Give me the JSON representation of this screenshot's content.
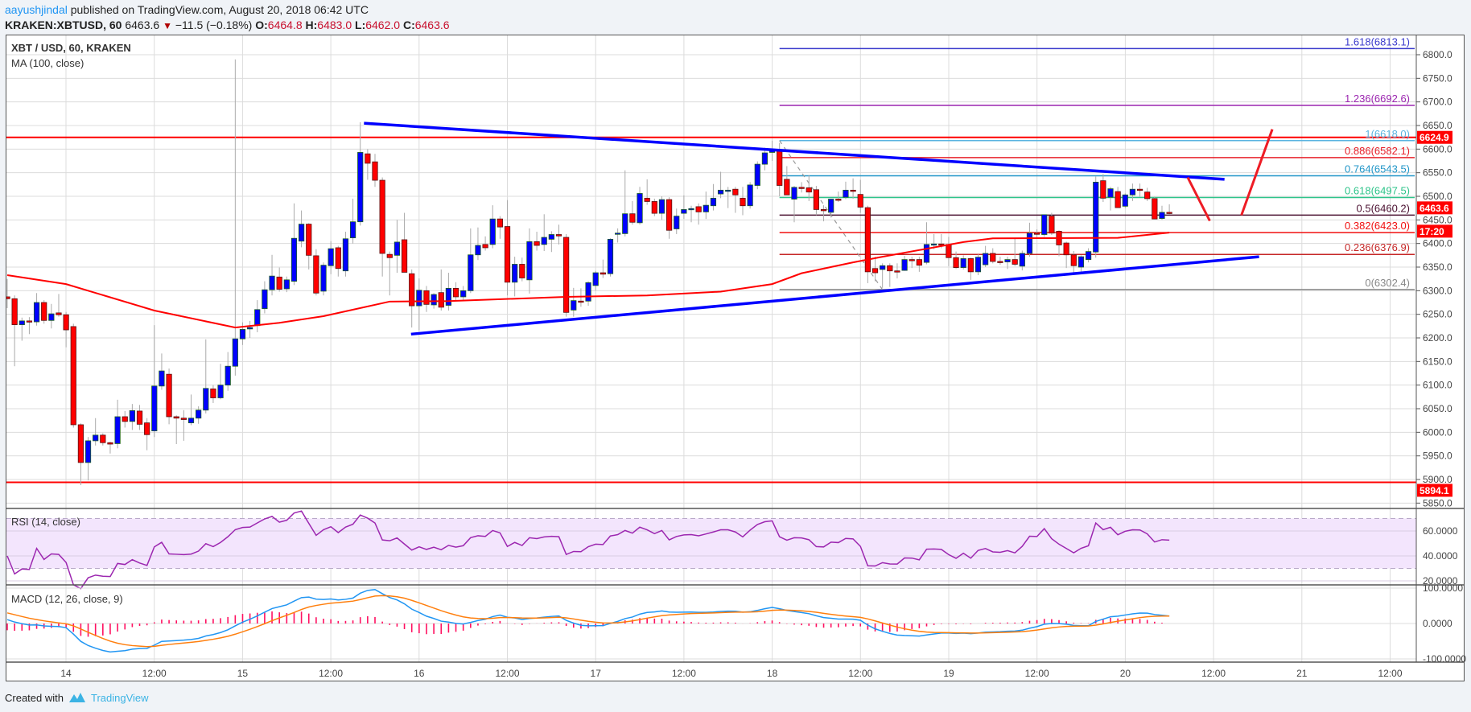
{
  "header": {
    "user": "aayushjindal",
    "published": " published on TradingView.com, August 20, 2018 06:42 UTC",
    "symbol": "KRAKEN:XBTUSD, 60",
    "last": "6463.6",
    "change": "−11.5 (−0.18%)",
    "o_label": "O:",
    "o": "6464.8",
    "h_label": "H:",
    "h": "6483.0",
    "l_label": "L:",
    "l": "6462.0",
    "c_label": "C:",
    "c": "6463.6"
  },
  "legend": {
    "title": "XBT / USD, 60, KRAKEN",
    "ma": "MA (100, close)",
    "rsi": "RSI (14, close)",
    "macd": "MACD (12, 26, close, 9)"
  },
  "footer": {
    "created": "Created with",
    "brand": "TradingView"
  },
  "colors": {
    "up": "#0000ff",
    "down": "#ff0000",
    "ma": "#ff0000",
    "trend": "#0000ff",
    "rsi": "#9c27b0",
    "macd": "#2196f3",
    "signal": "#ff7f0e",
    "hist": "#ff1060"
  },
  "chart_data": {
    "type": "candlestick",
    "title": "XBT / USD, 60, KRAKEN",
    "interval_minutes": 60,
    "first_candle": "Aug 13 16:00",
    "ylim": [
      5850,
      6800
    ],
    "price_ticks": [
      "6800.0",
      "6750.0",
      "6700.0",
      "6650.0",
      "6600.0",
      "6550.0",
      "6500.0",
      "6450.0",
      "6400.0",
      "6350.0",
      "6300.0",
      "6250.0",
      "6200.0",
      "6150.0",
      "6100.0",
      "6050.0",
      "6000.0",
      "5950.0",
      "5900.0",
      "5850.0"
    ],
    "time_ticks": [
      "14",
      "12:00",
      "15",
      "12:00",
      "16",
      "12:00",
      "17",
      "12:00",
      "18",
      "12:00",
      "19",
      "12:00",
      "20",
      "12:00",
      "21",
      "12:00"
    ],
    "grid": true,
    "candles": [
      [
        6287,
        6325,
        6263,
        6283
      ],
      [
        6283,
        6290,
        6140,
        6228
      ],
      [
        6228,
        6243,
        6194,
        6236
      ],
      [
        6236,
        6244,
        6208,
        6234
      ],
      [
        6234,
        6295,
        6226,
        6275
      ],
      [
        6275,
        6280,
        6230,
        6237
      ],
      [
        6237,
        6272,
        6220,
        6251
      ],
      [
        6253,
        6293,
        6245,
        6249
      ],
      [
        6249,
        6255,
        6180,
        6217
      ],
      [
        6224,
        6230,
        6010,
        6016
      ],
      [
        6016,
        6019,
        5888,
        5936
      ],
      [
        5936,
        5990,
        5898,
        5982
      ],
      [
        5982,
        6030,
        5972,
        5994
      ],
      [
        5994,
        5998,
        5972,
        5978
      ],
      [
        5978,
        5980,
        5955,
        5975
      ],
      [
        5976,
        6069,
        5966,
        6033
      ],
      [
        6033,
        6045,
        6010,
        6023
      ],
      [
        6023,
        6060,
        6005,
        6046
      ],
      [
        6045,
        6058,
        6005,
        6017
      ],
      [
        6020,
        6030,
        5962,
        5995
      ],
      [
        6003,
        6227,
        5990,
        6098
      ],
      [
        6098,
        6167,
        6090,
        6130
      ],
      [
        6123,
        6135,
        6017,
        6033
      ],
      [
        6033,
        6036,
        5975,
        6030
      ],
      [
        6030,
        6047,
        5982,
        6027
      ],
      [
        6020,
        6080,
        6015,
        6030
      ],
      [
        6030,
        6055,
        6018,
        6047
      ],
      [
        6047,
        6197,
        6040,
        6093
      ],
      [
        6092,
        6100,
        6062,
        6073
      ],
      [
        6073,
        6145,
        6070,
        6100
      ],
      [
        6100,
        6170,
        6088,
        6140
      ],
      [
        6140,
        6790,
        6120,
        6198
      ],
      [
        6198,
        6233,
        6185,
        6218
      ],
      [
        6219,
        6236,
        6200,
        6222
      ],
      [
        6226,
        6280,
        6212,
        6260
      ],
      [
        6262,
        6320,
        6252,
        6302
      ],
      [
        6302,
        6376,
        6290,
        6331
      ],
      [
        6329,
        6349,
        6298,
        6303
      ],
      [
        6304,
        6330,
        6297,
        6323
      ],
      [
        6320,
        6485,
        6312,
        6411
      ],
      [
        6405,
        6470,
        6392,
        6441
      ],
      [
        6441,
        6443,
        6345,
        6375
      ],
      [
        6374,
        6388,
        6290,
        6295
      ],
      [
        6299,
        6360,
        6290,
        6354
      ],
      [
        6353,
        6405,
        6335,
        6389
      ],
      [
        6391,
        6395,
        6330,
        6347
      ],
      [
        6342,
        6425,
        6330,
        6410
      ],
      [
        6412,
        6495,
        6400,
        6446
      ],
      [
        6446,
        6657,
        6438,
        6593
      ],
      [
        6590,
        6600,
        6535,
        6570
      ],
      [
        6573,
        6590,
        6520,
        6534
      ],
      [
        6534,
        6540,
        6330,
        6379
      ],
      [
        6377,
        6383,
        6290,
        6370
      ],
      [
        6375,
        6450,
        6338,
        6403
      ],
      [
        6408,
        6465,
        6345,
        6339
      ],
      [
        6336,
        6345,
        6222,
        6268
      ],
      [
        6268,
        6326,
        6216,
        6301
      ],
      [
        6300,
        6310,
        6255,
        6271
      ],
      [
        6270,
        6295,
        6262,
        6292
      ],
      [
        6296,
        6345,
        6258,
        6265
      ],
      [
        6269,
        6338,
        6258,
        6305
      ],
      [
        6305,
        6318,
        6280,
        6287
      ],
      [
        6287,
        6310,
        6279,
        6300
      ],
      [
        6300,
        6432,
        6295,
        6376
      ],
      [
        6376,
        6434,
        6365,
        6396
      ],
      [
        6398,
        6415,
        6385,
        6391
      ],
      [
        6398,
        6481,
        6390,
        6452
      ],
      [
        6452,
        6458,
        6410,
        6435
      ],
      [
        6436,
        6492,
        6290,
        6318
      ],
      [
        6318,
        6372,
        6288,
        6356
      ],
      [
        6356,
        6370,
        6320,
        6327
      ],
      [
        6323,
        6432,
        6294,
        6404
      ],
      [
        6404,
        6425,
        6385,
        6396
      ],
      [
        6398,
        6462,
        6384,
        6413
      ],
      [
        6409,
        6426,
        6382,
        6419
      ],
      [
        6419,
        6440,
        6398,
        6416
      ],
      [
        6413,
        6420,
        6245,
        6254
      ],
      [
        6259,
        6306,
        6245,
        6279
      ],
      [
        6278,
        6305,
        6266,
        6277
      ],
      [
        6278,
        6320,
        6268,
        6317
      ],
      [
        6311,
        6342,
        6300,
        6338
      ],
      [
        6338,
        6366,
        6327,
        6335
      ],
      [
        6336,
        6411,
        6330,
        6409
      ],
      [
        6420,
        6432,
        6402,
        6422
      ],
      [
        6421,
        6555,
        6415,
        6463
      ],
      [
        6463,
        6490,
        6440,
        6445
      ],
      [
        6444,
        6520,
        6440,
        6506
      ],
      [
        6496,
        6536,
        6482,
        6489
      ],
      [
        6489,
        6495,
        6458,
        6464
      ],
      [
        6464,
        6500,
        6450,
        6493
      ],
      [
        6493,
        6498,
        6410,
        6428
      ],
      [
        6431,
        6474,
        6420,
        6458
      ],
      [
        6464,
        6502,
        6452,
        6472
      ],
      [
        6473,
        6480,
        6445,
        6474
      ],
      [
        6478,
        6485,
        6440,
        6467
      ],
      [
        6467,
        6510,
        6452,
        6481
      ],
      [
        6480,
        6526,
        6470,
        6496
      ],
      [
        6505,
        6552,
        6496,
        6513
      ],
      [
        6513,
        6520,
        6475,
        6513
      ],
      [
        6515,
        6520,
        6465,
        6503
      ],
      [
        6496,
        6520,
        6460,
        6480
      ],
      [
        6480,
        6530,
        6474,
        6524
      ],
      [
        6523,
        6574,
        6515,
        6568
      ],
      [
        6568,
        6603,
        6555,
        6592
      ],
      [
        6593,
        6618,
        6575,
        6600
      ],
      [
        6596,
        6613,
        6500,
        6523
      ],
      [
        6536,
        6564,
        6504,
        6503
      ],
      [
        6494,
        6522,
        6445,
        6519
      ],
      [
        6519,
        6530,
        6508,
        6518
      ],
      [
        6518,
        6545,
        6490,
        6509
      ],
      [
        6514,
        6522,
        6460,
        6472
      ],
      [
        6472,
        6481,
        6447,
        6470
      ],
      [
        6466,
        6494,
        6455,
        6494
      ],
      [
        6494,
        6510,
        6488,
        6492
      ],
      [
        6498,
        6531,
        6494,
        6513
      ],
      [
        6513,
        6538,
        6495,
        6511
      ],
      [
        6504,
        6535,
        6465,
        6477
      ],
      [
        6476,
        6480,
        6316,
        6340
      ],
      [
        6347,
        6372,
        6320,
        6338
      ],
      [
        6345,
        6358,
        6306,
        6353
      ],
      [
        6353,
        6358,
        6308,
        6342
      ],
      [
        6342,
        6358,
        6326,
        6341
      ],
      [
        6343,
        6374,
        6342,
        6366
      ],
      [
        6366,
        6372,
        6348,
        6365
      ],
      [
        6366,
        6372,
        6340,
        6354
      ],
      [
        6360,
        6445,
        6356,
        6398
      ],
      [
        6398,
        6420,
        6388,
        6399
      ],
      [
        6399,
        6420,
        6390,
        6397
      ],
      [
        6398,
        6414,
        6352,
        6370
      ],
      [
        6370,
        6383,
        6346,
        6349
      ],
      [
        6349,
        6375,
        6345,
        6368
      ],
      [
        6368,
        6370,
        6323,
        6340
      ],
      [
        6340,
        6377,
        6333,
        6371
      ],
      [
        6355,
        6395,
        6350,
        6379
      ],
      [
        6379,
        6390,
        6358,
        6362
      ],
      [
        6362,
        6372,
        6355,
        6360
      ],
      [
        6361,
        6372,
        6346,
        6366
      ],
      [
        6366,
        6412,
        6352,
        6356
      ],
      [
        6352,
        6385,
        6343,
        6379
      ],
      [
        6379,
        6444,
        6372,
        6422
      ],
      [
        6422,
        6430,
        6410,
        6421
      ],
      [
        6419,
        6461,
        6414,
        6461
      ],
      [
        6458,
        6465,
        6418,
        6422
      ],
      [
        6426,
        6428,
        6373,
        6397
      ],
      [
        6401,
        6404,
        6348,
        6376
      ],
      [
        6376,
        6384,
        6335,
        6353
      ],
      [
        6350,
        6375,
        6340,
        6372
      ],
      [
        6366,
        6390,
        6360,
        6383
      ],
      [
        6382,
        6542,
        6370,
        6530
      ],
      [
        6533,
        6547,
        6488,
        6496
      ],
      [
        6498,
        6520,
        6470,
        6516
      ],
      [
        6510,
        6520,
        6476,
        6476
      ],
      [
        6479,
        6506,
        6475,
        6503
      ],
      [
        6503,
        6527,
        6490,
        6515
      ],
      [
        6515,
        6527,
        6499,
        6514
      ],
      [
        6509,
        6518,
        6490,
        6495
      ],
      [
        6495,
        6499,
        6452,
        6452
      ],
      [
        6453,
        6480,
        6450,
        6466
      ],
      [
        6466,
        6483,
        6462,
        6463.6
      ]
    ],
    "ma100": [
      [
        0,
        6333
      ],
      [
        8,
        6314
      ],
      [
        20,
        6258
      ],
      [
        31,
        6222
      ],
      [
        37,
        6232
      ],
      [
        43,
        6246
      ],
      [
        52,
        6277
      ],
      [
        60,
        6278
      ],
      [
        76,
        6287
      ],
      [
        87,
        6290
      ],
      [
        97,
        6298
      ],
      [
        104,
        6314
      ],
      [
        108,
        6337
      ],
      [
        115,
        6360
      ],
      [
        119,
        6372
      ],
      [
        130,
        6403
      ],
      [
        134,
        6411
      ],
      [
        151,
        6412
      ],
      [
        158,
        6423
      ]
    ],
    "horizontal_lines": [
      {
        "price": 6624.9,
        "label": "6624.9"
      },
      {
        "price": 5894.1,
        "label": "5894.1"
      }
    ],
    "last_price_label": "6463.6",
    "countdown_label": "17:20",
    "trendlines": [
      {
        "name": "upper",
        "from": [
          48.5,
          6655
        ],
        "to": [
          165.5,
          6536
        ]
      },
      {
        "name": "lower",
        "from": [
          54.9,
          6208
        ],
        "to": [
          170.2,
          6372
        ]
      }
    ],
    "fibonacci": {
      "start_index": 105,
      "levels": [
        {
          "label": "1.618(6813.1)",
          "price": 6813.1,
          "color": "#3a3acc"
        },
        {
          "label": "1.236(6692.6)",
          "price": 6692.6,
          "color": "#9c27b0"
        },
        {
          "label": "1(6618.0)",
          "price": 6618.0,
          "color": "#5ab4e0"
        },
        {
          "label": "0.886(6582.1)",
          "price": 6582.1,
          "color": "#e8202a"
        },
        {
          "label": "0.764(6543.5)",
          "price": 6543.5,
          "color": "#2196c8"
        },
        {
          "label": "0.618(6497.5)",
          "price": 6497.5,
          "color": "#2ec48a"
        },
        {
          "label": "0.5(6460.2)",
          "price": 6460.2,
          "color": "#4a1030"
        },
        {
          "label": "0.382(6423.0)",
          "price": 6423.0,
          "color": "#f01010"
        },
        {
          "label": "0.236(6376.9)",
          "price": 6376.9,
          "color": "#c62828"
        },
        {
          "label": "0(6302.4)",
          "price": 6302.4,
          "color": "#888888"
        }
      ],
      "diagonal": {
        "from": [
          105,
          6618
        ],
        "to": [
          119,
          6302.4
        ]
      }
    },
    "projection": [
      [
        [
          160.5,
          6540
        ],
        [
          163.5,
          6448
        ]
      ],
      [
        [
          167.8,
          6460
        ],
        [
          172,
          6642
        ]
      ]
    ],
    "indicators": {
      "rsi": {
        "period": 14,
        "bands": [
          70,
          30
        ],
        "ticks": [
          "60.0000",
          "40.0000",
          "20.0000"
        ],
        "tick_values": [
          60,
          40,
          20
        ],
        "seed_rsi": 40
      },
      "macd": {
        "fast": 12,
        "slow": 26,
        "signal": 9,
        "ticks": [
          "100.0000",
          "0.0000",
          "-100.0000"
        ],
        "tick_values": [
          100,
          0,
          -100
        ],
        "seed_macd": 11,
        "seed_signal": 30
      }
    }
  }
}
